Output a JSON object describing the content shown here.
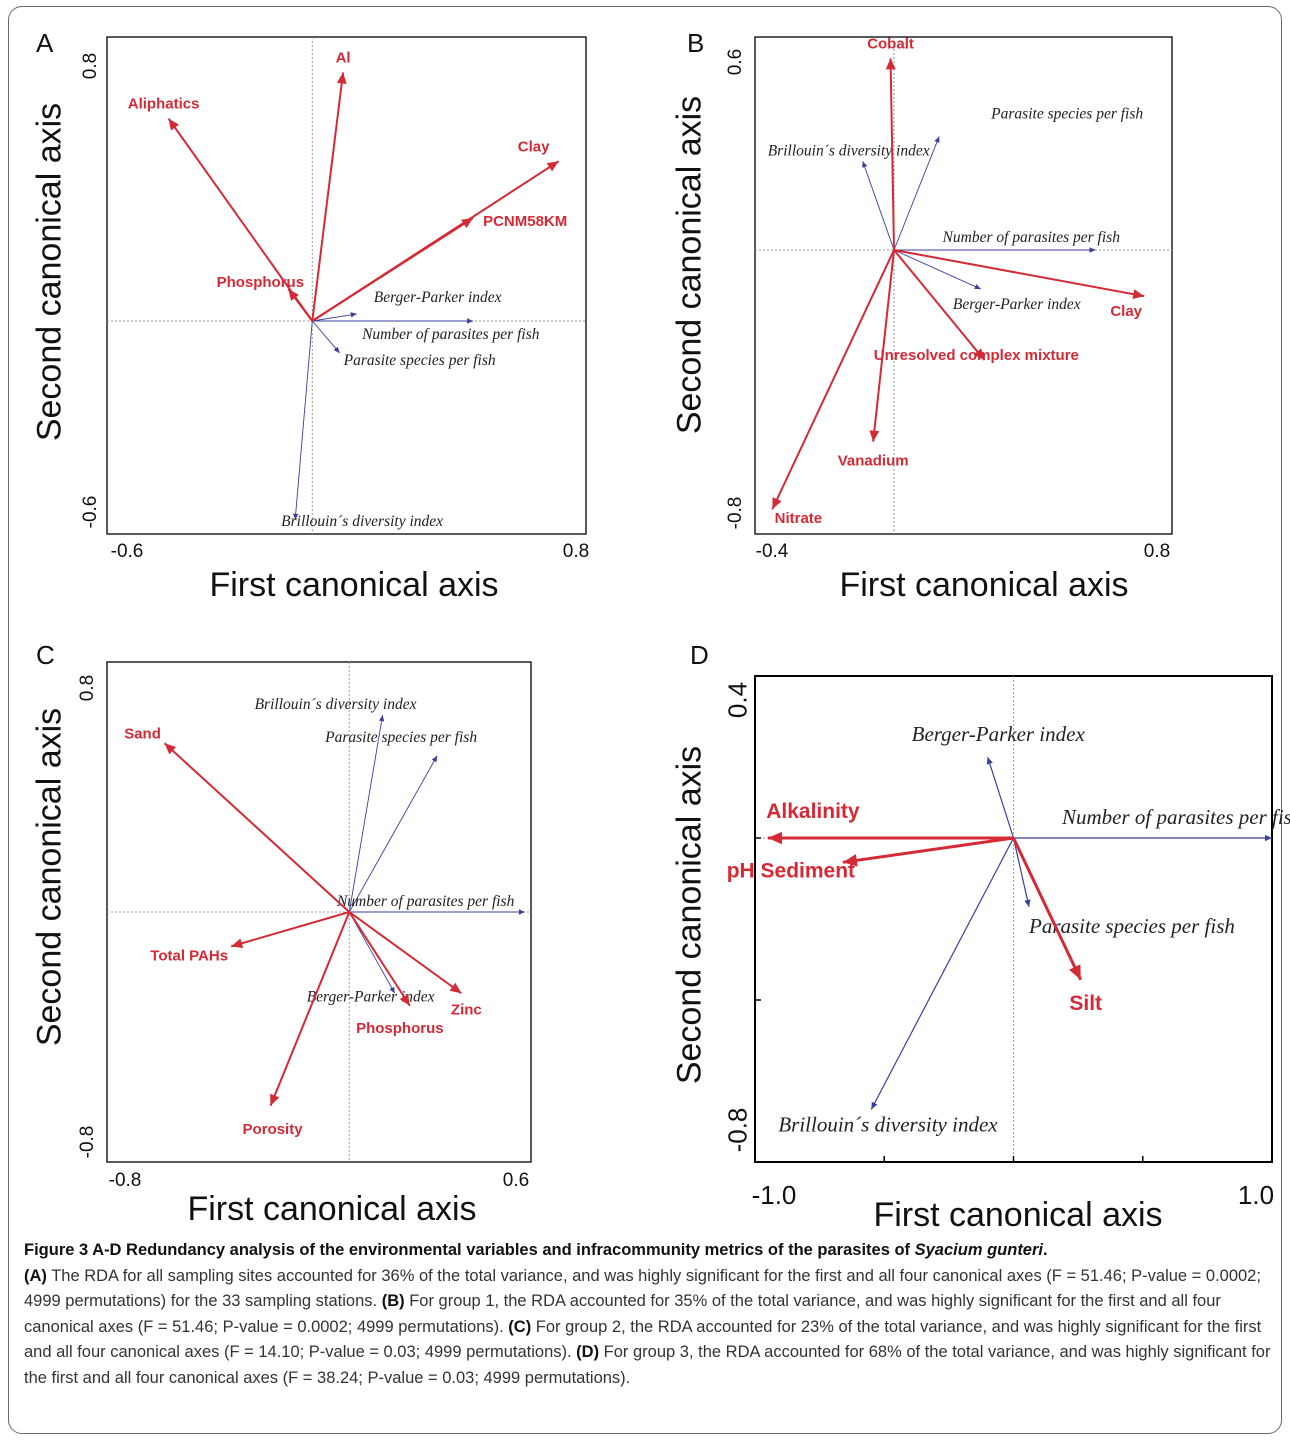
{
  "figure": {
    "caption_title": "Figure 3 A-D Redundancy analysis of the environmental variables and infracommunity metrics of the parasites of ",
    "caption_species": "Syacium gunteri",
    "caption_title_end": ".",
    "caption_parts": [
      {
        "tag": "(A)",
        "text": " The RDA for all sampling sites accounted for 36% of the total variance, and was highly significant for the first and all four canonical axes (F = 51.46; P-value = 0.0002; 4999 permutations) for the 33 sampling stations. "
      },
      {
        "tag": "(B)",
        "text": " For group 1, the RDA accounted for 35% of the total variance, and was highly significant for the first and all four canonical axes (F = 51.46; P-value = 0.0002; 4999 permutations). "
      },
      {
        "tag": "(C)",
        "text": " For group 2, the RDA accounted for 23% of the total variance, and was highly significant for the first and all four canonical axes (F = 14.10; P-value = 0.03; 4999 permutations). "
      },
      {
        "tag": "(D)",
        "text": " For group 3, the RDA accounted for 68% of the total variance, and was highly significant for the first and all four canonical axes (F = 38.24; P-value = 0.03; 4999 permutations)."
      }
    ]
  },
  "colors": {
    "environment": "#d42a35",
    "response": "#3b3f9e",
    "grid": "#9a9a9a",
    "frame": "#000000"
  },
  "chart_data": [
    {
      "panel": "A",
      "type": "biplot",
      "xlabel": "First canonical axis",
      "ylabel": "Second canonical axis",
      "xlim": [
        -0.6,
        0.8
      ],
      "ylim": [
        -0.6,
        0.8
      ],
      "xticks": [
        "-0.6",
        "0.8"
      ],
      "yticks": [
        "0.8",
        "-0.6"
      ],
      "env_vectors": [
        {
          "label": "Al",
          "x": 0.09,
          "y": 0.7
        },
        {
          "label": "Aliphatics",
          "x": -0.42,
          "y": 0.57
        },
        {
          "label": "Clay",
          "x": 0.72,
          "y": 0.45
        },
        {
          "label": "PCNM58KM",
          "x": 0.47,
          "y": 0.29
        },
        {
          "label": "Phosphorus",
          "x": -0.07,
          "y": 0.09
        }
      ],
      "response_vectors": [
        {
          "label": "Berger-Parker index",
          "x": 0.13,
          "y": 0.02
        },
        {
          "label": "Number of parasites per fish",
          "x": 0.47,
          "y": 0.0
        },
        {
          "label": "Parasite species per fish",
          "x": 0.08,
          "y": -0.09
        },
        {
          "label": "Brillouin´s diversity index",
          "x": -0.05,
          "y": -0.56
        }
      ]
    },
    {
      "panel": "B",
      "type": "biplot",
      "xlabel": "First canonical axis",
      "ylabel": "Second canonical axis",
      "xlim": [
        -0.4,
        0.8
      ],
      "ylim": [
        -0.8,
        0.6
      ],
      "xticks": [
        "-0.4",
        "0.8"
      ],
      "yticks": [
        "0.6",
        "-0.8"
      ],
      "env_vectors": [
        {
          "label": "Cobalt",
          "x": -0.01,
          "y": 0.54
        },
        {
          "label": "Clay",
          "x": 0.72,
          "y": -0.13
        },
        {
          "label": "Unresolved complex mixture",
          "x": 0.26,
          "y": -0.31
        },
        {
          "label": "Vanadium",
          "x": -0.06,
          "y": -0.54
        },
        {
          "label": "Nitrate",
          "x": -0.35,
          "y": -0.73
        }
      ],
      "response_vectors": [
        {
          "label": "Brillouin´s diversity index",
          "x": -0.09,
          "y": 0.25
        },
        {
          "label": "Parasite species per fish",
          "x": 0.13,
          "y": 0.32
        },
        {
          "label": "Number of parasites per fish",
          "x": 0.58,
          "y": 0.0
        },
        {
          "label": "Berger-Parker index",
          "x": 0.25,
          "y": -0.11
        }
      ]
    },
    {
      "panel": "C",
      "type": "biplot",
      "xlabel": "First canonical axis",
      "ylabel": "Second canonical axis",
      "xlim": [
        -0.8,
        0.6
      ],
      "ylim": [
        -0.8,
        0.8
      ],
      "xticks": [
        "-0.8",
        "0.6"
      ],
      "yticks": [
        "0.8",
        "-0.8"
      ],
      "env_vectors": [
        {
          "label": "Sand",
          "x": -0.61,
          "y": 0.54
        },
        {
          "label": "Total PAHs",
          "x": -0.39,
          "y": -0.11
        },
        {
          "label": "Zinc",
          "x": 0.37,
          "y": -0.26
        },
        {
          "label": "Phosphorus",
          "x": 0.2,
          "y": -0.3
        },
        {
          "label": "Porosity",
          "x": -0.26,
          "y": -0.62
        }
      ],
      "response_vectors": [
        {
          "label": "Brillouin´s diversity index",
          "x": 0.11,
          "y": 0.63
        },
        {
          "label": "Parasite species per fish",
          "x": 0.29,
          "y": 0.5
        },
        {
          "label": "Number of parasites per fish",
          "x": 0.58,
          "y": 0.0
        },
        {
          "label": "Berger-Parker index",
          "x": 0.15,
          "y": -0.26
        }
      ]
    },
    {
      "panel": "D",
      "type": "biplot",
      "xlabel": "First canonical axis",
      "ylabel": "Second canonical axis",
      "xlim": [
        -1.0,
        1.0
      ],
      "ylim": [
        -0.8,
        0.4
      ],
      "xticks": [
        "-1.0",
        "1.0"
      ],
      "yticks": [
        "0.4",
        "-0.8"
      ],
      "env_vectors": [
        {
          "label": "Alkalinity",
          "x": -0.95,
          "y": 0.0
        },
        {
          "label": "pH Sediment",
          "x": -0.66,
          "y": -0.06
        },
        {
          "label": "Silt",
          "x": 0.26,
          "y": -0.35
        }
      ],
      "response_vectors": [
        {
          "label": "Berger-Parker index",
          "x": -0.1,
          "y": 0.2
        },
        {
          "label": "Number of parasites per fish",
          "x": 1.0,
          "y": 0.0
        },
        {
          "label": "Parasite species per fish",
          "x": 0.06,
          "y": -0.17
        },
        {
          "label": "Brillouin´s diversity index",
          "x": -0.55,
          "y": -0.67
        }
      ]
    }
  ]
}
